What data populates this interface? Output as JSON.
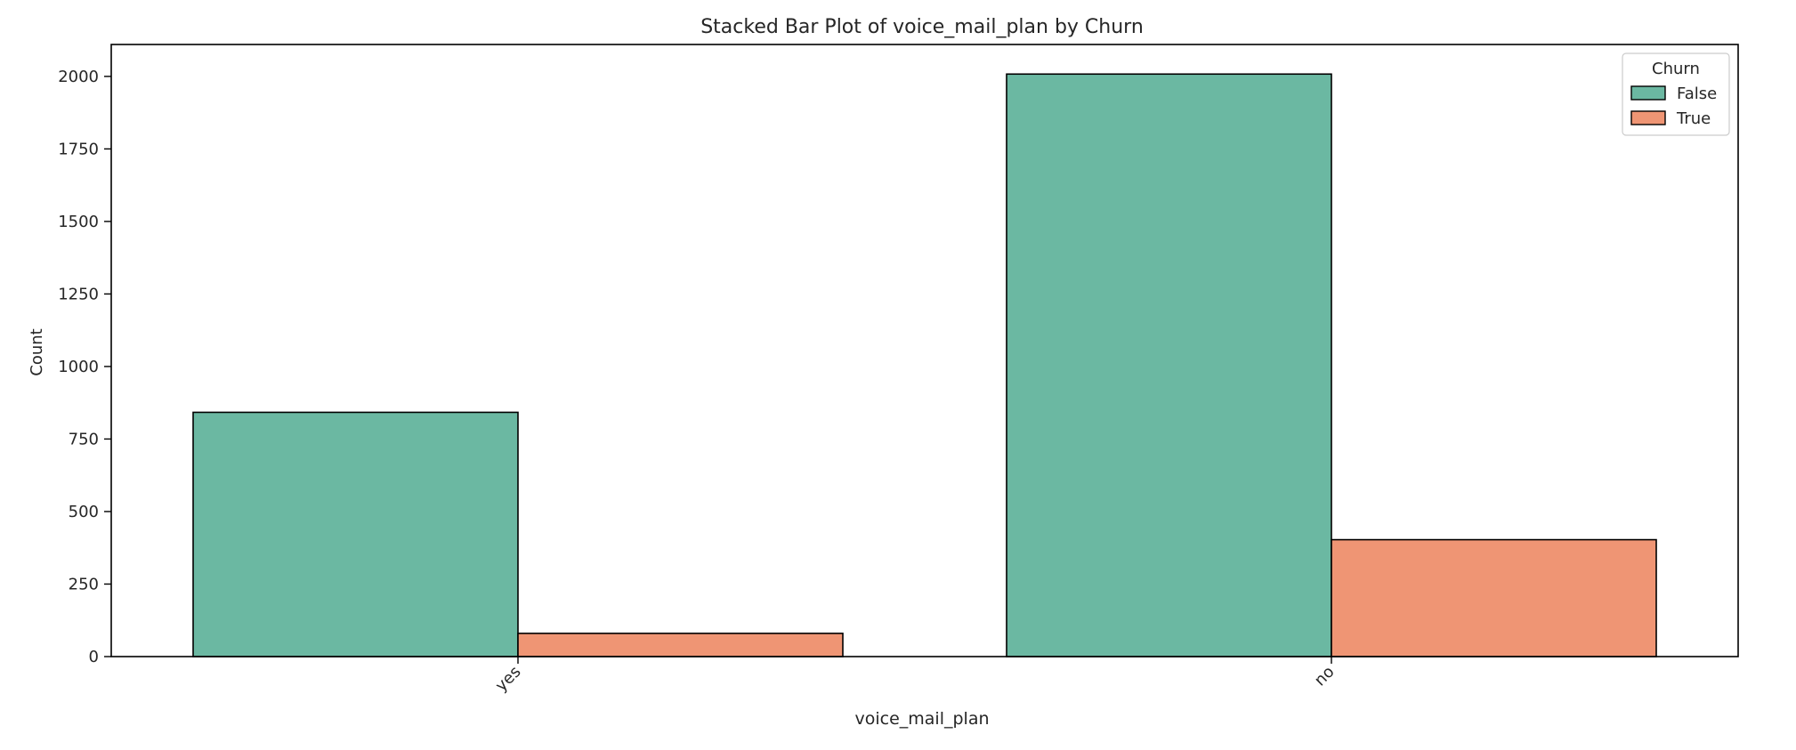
{
  "chart_data": {
    "type": "bar",
    "title": "Stacked Bar Plot of voice_mail_plan by Churn",
    "xlabel": "voice_mail_plan",
    "ylabel": "Count",
    "categories": [
      "yes",
      "no"
    ],
    "series": [
      {
        "name": "False",
        "values": [
          842,
          2008
        ],
        "color": "#6bb8a2"
      },
      {
        "name": "True",
        "values": [
          80,
          403
        ],
        "color": "#ef9574"
      }
    ],
    "ylim": [
      0,
      2110
    ],
    "yticks": [
      0,
      250,
      500,
      750,
      1000,
      1250,
      1500,
      1750,
      2000
    ],
    "legend": {
      "title": "Churn",
      "placement": "top-right"
    },
    "grid": false,
    "xtick_rotation": "45 degrees"
  }
}
